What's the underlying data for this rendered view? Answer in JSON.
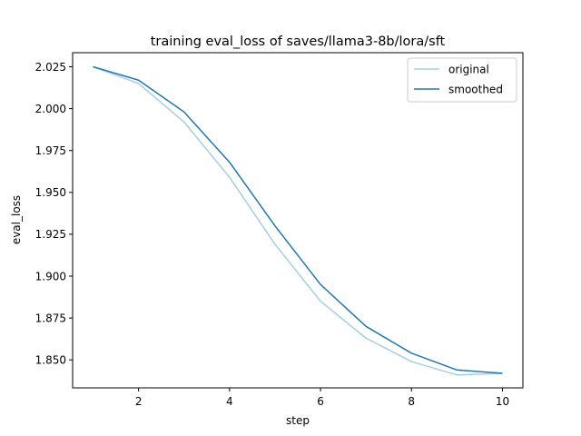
{
  "chart_data": {
    "type": "line",
    "title": "training eval_loss of saves/llama3-8b/lora/sft",
    "xlabel": "step",
    "ylabel": "eval_loss",
    "xlim": [
      0.55,
      10.45
    ],
    "ylim": [
      1.8333,
      2.0334
    ],
    "xticks": [
      2,
      4,
      6,
      8,
      10
    ],
    "xtick_labels": [
      "2",
      "4",
      "6",
      "8",
      "10"
    ],
    "yticks": [
      1.85,
      1.875,
      1.9,
      1.925,
      1.95,
      1.975,
      2.0,
      2.025
    ],
    "ytick_labels": [
      "1.850",
      "1.875",
      "1.900",
      "1.925",
      "1.950",
      "1.975",
      "2.000",
      "2.025"
    ],
    "grid": false,
    "legend_position": "top-right",
    "series": [
      {
        "name": "original",
        "color": "#a6cde2",
        "x": [
          1,
          2,
          3,
          4,
          5,
          6,
          7,
          8,
          9,
          10
        ],
        "values": [
          2.025,
          2.015,
          1.992,
          1.959,
          1.919,
          1.885,
          1.863,
          1.849,
          1.841,
          1.842
        ]
      },
      {
        "name": "smoothed",
        "color": "#1f78b4",
        "x": [
          1,
          2,
          3,
          4,
          5,
          6,
          7,
          8,
          9,
          10
        ],
        "values": [
          2.025,
          2.017,
          1.998,
          1.968,
          1.93,
          1.895,
          1.87,
          1.854,
          1.844,
          1.842
        ]
      }
    ]
  }
}
